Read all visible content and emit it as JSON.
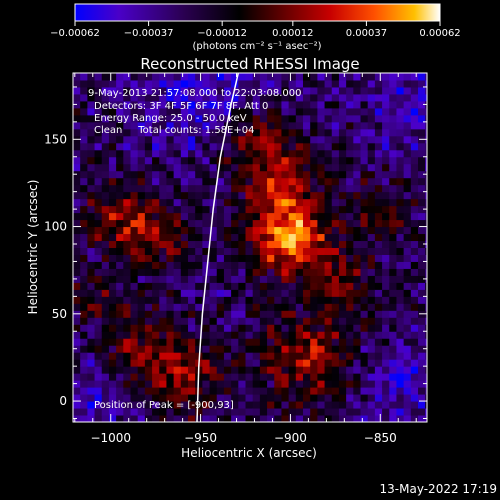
{
  "chart_data": {
    "type": "heatmap",
    "title": "Reconstructed RHESSI Image",
    "xlabel": "Heliocentric X (arcsec)",
    "ylabel": "Heliocentric Y (arcsec)",
    "xlim": [
      -1021,
      -824
    ],
    "ylim": [
      -12,
      188
    ],
    "xticks": [
      -1000,
      -950,
      -900,
      -850
    ],
    "yticks": [
      0,
      50,
      100,
      150
    ],
    "xtick_labels": [
      "−1000",
      "−950",
      "−900",
      "−850"
    ],
    "ytick_labels": [
      "0",
      "50",
      "100",
      "150"
    ],
    "colorbar": {
      "range": [
        -0.00062,
        0.00062
      ],
      "ticks": [
        -0.00062,
        -0.00037,
        -0.00012,
        0.00012,
        0.00037,
        0.00062
      ],
      "tick_labels": [
        "−0.00062",
        "−0.00037",
        "−0.00012",
        "0.00012",
        "0.00037",
        "0.00062"
      ],
      "unit_label": "(photons cm⁻² s⁻¹ asec⁻²)",
      "colormap": [
        "#0000ff",
        "#4a00c8",
        "#2a0050",
        "#000000",
        "#6a0000",
        "#c80000",
        "#ff5000",
        "#ffc000",
        "#ffffff"
      ]
    },
    "annotations": {
      "time_range": "9-May-2013 21:57:08.000 to 22:03:08.000",
      "detectors": "Detectors: 3F 4F 5F 6F 7F 8F, Att 0",
      "energy_range": "Energy Range: 25.0 - 50.0 keV",
      "clean_counts": "Clean     Total counts: 1.58E+04",
      "peak": "Position of Peak = [-900,93]"
    },
    "limb_curve": [
      {
        "x": -952,
        "y": -12
      },
      {
        "x": -951,
        "y": 20
      },
      {
        "x": -949,
        "y": 50
      },
      {
        "x": -946,
        "y": 80
      },
      {
        "x": -943,
        "y": 110
      },
      {
        "x": -939,
        "y": 140
      },
      {
        "x": -933,
        "y": 170
      },
      {
        "x": -929,
        "y": 188
      }
    ],
    "bright_sources": [
      {
        "x": -900,
        "y": 93,
        "amplitude": 1.0,
        "width": 14
      },
      {
        "x": -905,
        "y": 125,
        "amplitude": 0.55,
        "width": 16
      },
      {
        "x": -920,
        "y": 150,
        "amplitude": 0.45,
        "width": 14
      },
      {
        "x": -995,
        "y": 105,
        "amplitude": 0.5,
        "width": 14
      },
      {
        "x": -975,
        "y": 95,
        "amplitude": 0.45,
        "width": 12
      },
      {
        "x": -960,
        "y": 15,
        "amplitude": 0.55,
        "width": 15
      },
      {
        "x": -985,
        "y": 30,
        "amplitude": 0.4,
        "width": 14
      },
      {
        "x": -890,
        "y": 25,
        "amplitude": 0.6,
        "width": 18
      },
      {
        "x": -870,
        "y": 70,
        "amplitude": 0.4,
        "width": 14
      },
      {
        "x": -850,
        "y": 110,
        "amplitude": 0.35,
        "width": 12
      },
      {
        "x": -1010,
        "y": 60,
        "amplitude": 0.35,
        "width": 10
      }
    ],
    "negative_sources": [
      {
        "x": -950,
        "y": 180,
        "amplitude": 0.6,
        "width": 25
      },
      {
        "x": -1010,
        "y": 0,
        "amplitude": 0.4,
        "width": 18
      },
      {
        "x": -840,
        "y": 10,
        "amplitude": 0.45,
        "width": 18
      },
      {
        "x": -830,
        "y": 170,
        "amplitude": 0.4,
        "width": 20
      }
    ]
  },
  "footer": {
    "datestamp": "13-May-2022 17:19"
  }
}
